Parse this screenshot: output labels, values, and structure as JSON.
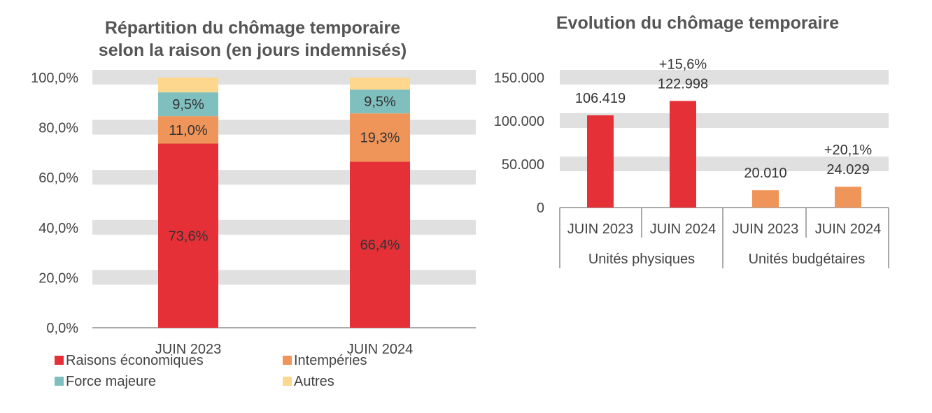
{
  "chart_data": [
    {
      "type": "bar",
      "stacked": true,
      "title": "Répartition du chômage temporaire selon la raison (en jours indemnisés)",
      "title_lines": [
        "Répartition du chômage temporaire",
        "selon la raison (en jours indemnisés)"
      ],
      "categories": [
        "JUIN 2023",
        "JUIN 2024"
      ],
      "yticks": [
        "0,0%",
        "20,0%",
        "40,0%",
        "60,0%",
        "80,0%",
        "100,0%"
      ],
      "ylim": [
        0,
        100
      ],
      "series": [
        {
          "name": "Raisons économiques",
          "values": [
            73.6,
            66.4
          ],
          "labels": [
            "73,6%",
            "66,4%"
          ],
          "color": "#e63037"
        },
        {
          "name": "Intempéries",
          "values": [
            11.0,
            19.3
          ],
          "labels": [
            "11,0%",
            "19,3%"
          ],
          "color": "#f0955a"
        },
        {
          "name": "Force majeure",
          "values": [
            9.5,
            9.5
          ],
          "labels": [
            "9,5%",
            "9,5%"
          ],
          "color": "#7fc0be"
        },
        {
          "name": "Autres",
          "values": [
            5.9,
            4.8
          ],
          "labels": [
            "",
            ""
          ],
          "color": "#fdd78d"
        }
      ],
      "legend": "bottom"
    },
    {
      "type": "bar",
      "title": "Evolution du chômage temporaire",
      "groups": [
        {
          "name": "Unités physiques",
          "categories": [
            "JUIN 2023",
            "JUIN 2024"
          ],
          "values": [
            106419,
            122998
          ],
          "labels": [
            "106.419",
            "122.998"
          ],
          "change": [
            "",
            "+15,6%"
          ],
          "color": "#e63037"
        },
        {
          "name": "Unités budgétaires",
          "categories": [
            "JUIN 2023",
            "JUIN 2024"
          ],
          "values": [
            20010,
            24029
          ],
          "labels": [
            "20.010",
            "24.029"
          ],
          "change": [
            "",
            "+20,1%"
          ],
          "color": "#f0955a"
        }
      ],
      "yticks": [
        "0",
        "50.000",
        "100.000",
        "150.000"
      ],
      "ylim": [
        0,
        150000
      ]
    }
  ]
}
